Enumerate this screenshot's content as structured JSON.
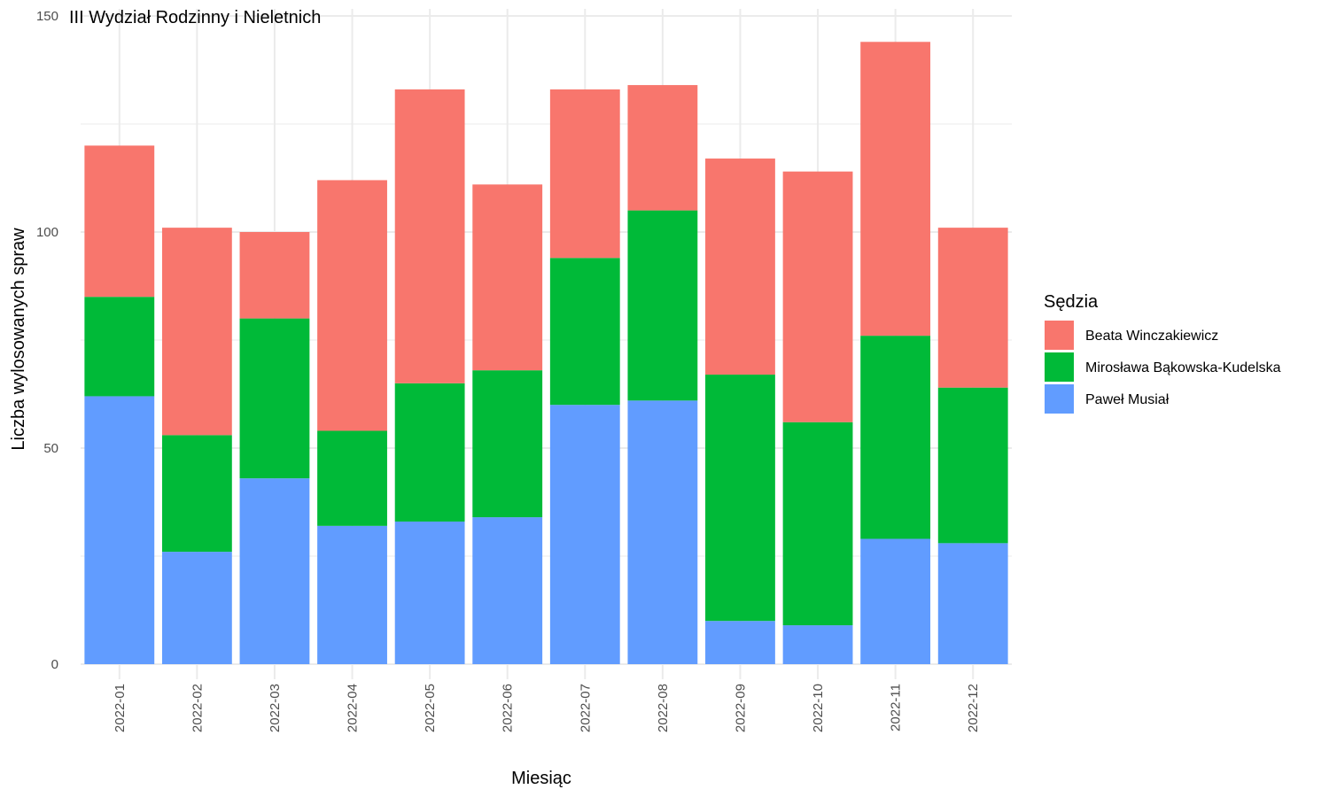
{
  "chart_data": {
    "type": "bar",
    "stacked": true,
    "title": "III Wydział Rodzinny i Nieletnich",
    "xlabel": "Miesiąc",
    "ylabel": "Liczba wylosowanych spraw",
    "ylim": [
      0,
      150
    ],
    "yticks": [
      0,
      50,
      100,
      150
    ],
    "grid": true,
    "legend": {
      "title": "Sędzia",
      "placement": "right"
    },
    "categories": [
      "2022-01",
      "2022-02",
      "2022-03",
      "2022-04",
      "2022-05",
      "2022-06",
      "2022-07",
      "2022-08",
      "2022-09",
      "2022-10",
      "2022-11",
      "2022-12"
    ],
    "series": [
      {
        "name": "Paweł Musiał",
        "color": "#619CFF",
        "values": [
          62,
          26,
          43,
          32,
          33,
          34,
          60,
          61,
          10,
          9,
          29,
          28
        ]
      },
      {
        "name": "Mirosława Bąkowska-Kudelska",
        "color": "#00BA38",
        "values": [
          23,
          27,
          37,
          22,
          32,
          34,
          34,
          44,
          57,
          47,
          47,
          36
        ]
      },
      {
        "name": "Beata Winczakiewicz",
        "color": "#F8766D",
        "values": [
          35,
          48,
          20,
          58,
          68,
          43,
          39,
          29,
          50,
          58,
          68,
          37
        ]
      }
    ],
    "legend_order": [
      "Beata Winczakiewicz",
      "Mirosława Bąkowska-Kudelska",
      "Paweł Musiał"
    ]
  }
}
